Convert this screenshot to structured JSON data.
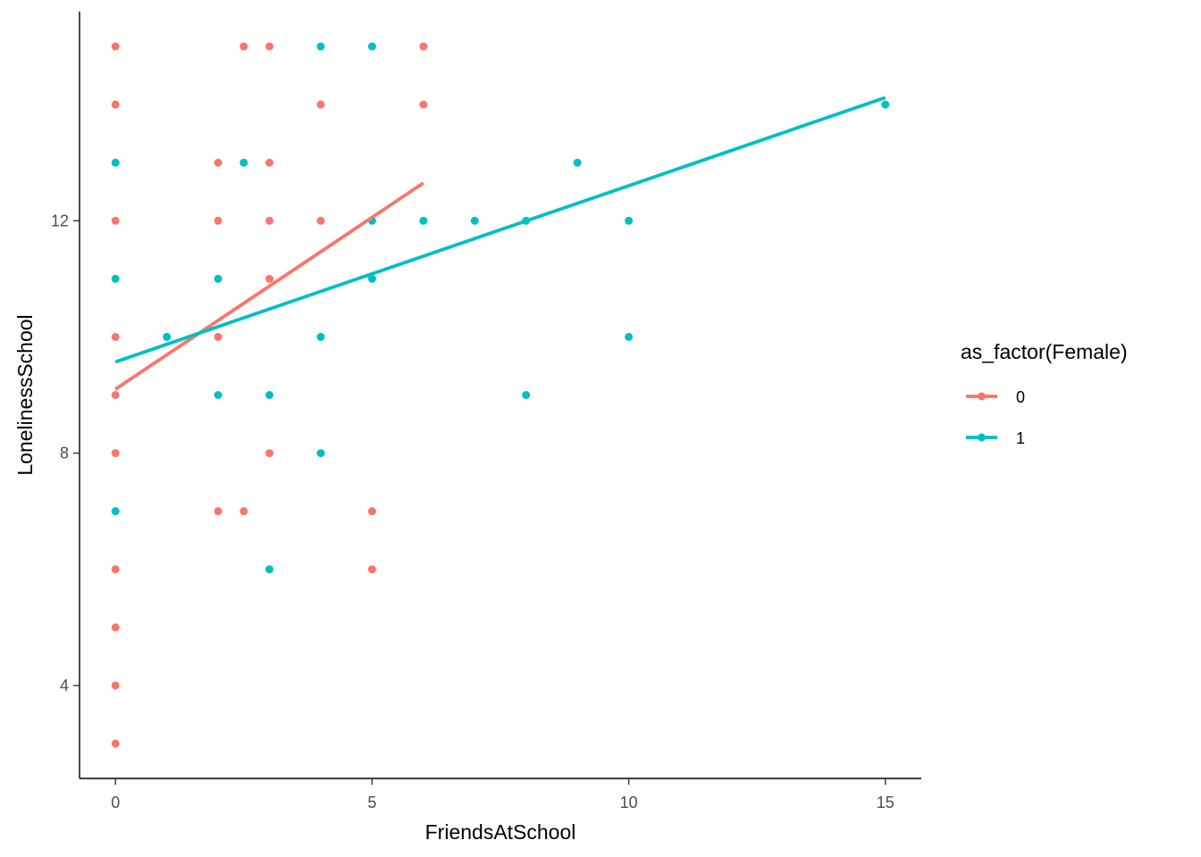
{
  "chart_data": {
    "type": "scatter",
    "xlabel": "FriendsAtSchool",
    "ylabel": "LonelinessSchool",
    "xlim": [
      -0.7,
      15.7
    ],
    "ylim": [
      2.4,
      15.6
    ],
    "xticks": [
      0,
      5,
      10,
      15
    ],
    "yticks": [
      4,
      8,
      12
    ],
    "grid": false,
    "legend": {
      "title": "as_factor(Female)",
      "position": "right"
    },
    "series": [
      {
        "name": "0",
        "color": "#F8766D",
        "points": [
          [
            0,
            15
          ],
          [
            0,
            14
          ],
          [
            0,
            12
          ],
          [
            0,
            10
          ],
          [
            0,
            9
          ],
          [
            0,
            8
          ],
          [
            0,
            6
          ],
          [
            0,
            5
          ],
          [
            0,
            4
          ],
          [
            0,
            3
          ],
          [
            2,
            13
          ],
          [
            2,
            12
          ],
          [
            2,
            10
          ],
          [
            2,
            7
          ],
          [
            2.5,
            15
          ],
          [
            2.5,
            7
          ],
          [
            3,
            15
          ],
          [
            3,
            13
          ],
          [
            3,
            12
          ],
          [
            3,
            11
          ],
          [
            3,
            8
          ],
          [
            4,
            14
          ],
          [
            4,
            12
          ],
          [
            5,
            7
          ],
          [
            5,
            6
          ],
          [
            6,
            15
          ],
          [
            6,
            14
          ]
        ],
        "fit": {
          "x": [
            0,
            6
          ],
          "y": [
            9.1,
            12.65
          ]
        }
      },
      {
        "name": "1",
        "color": "#00BFC4",
        "points": [
          [
            0,
            13
          ],
          [
            0,
            11
          ],
          [
            0,
            7
          ],
          [
            1,
            10
          ],
          [
            2,
            11
          ],
          [
            2,
            9
          ],
          [
            2.5,
            13
          ],
          [
            3,
            9
          ],
          [
            3,
            6
          ],
          [
            4,
            15
          ],
          [
            4,
            10
          ],
          [
            4,
            8
          ],
          [
            5,
            15
          ],
          [
            5,
            12
          ],
          [
            5,
            11
          ],
          [
            6,
            12
          ],
          [
            7,
            12
          ],
          [
            8,
            12
          ],
          [
            8,
            9
          ],
          [
            9,
            13
          ],
          [
            10,
            12
          ],
          [
            10,
            10
          ],
          [
            15,
            14
          ]
        ],
        "fit": {
          "x": [
            0,
            15
          ],
          "y": [
            9.57,
            14.12
          ]
        }
      }
    ]
  }
}
